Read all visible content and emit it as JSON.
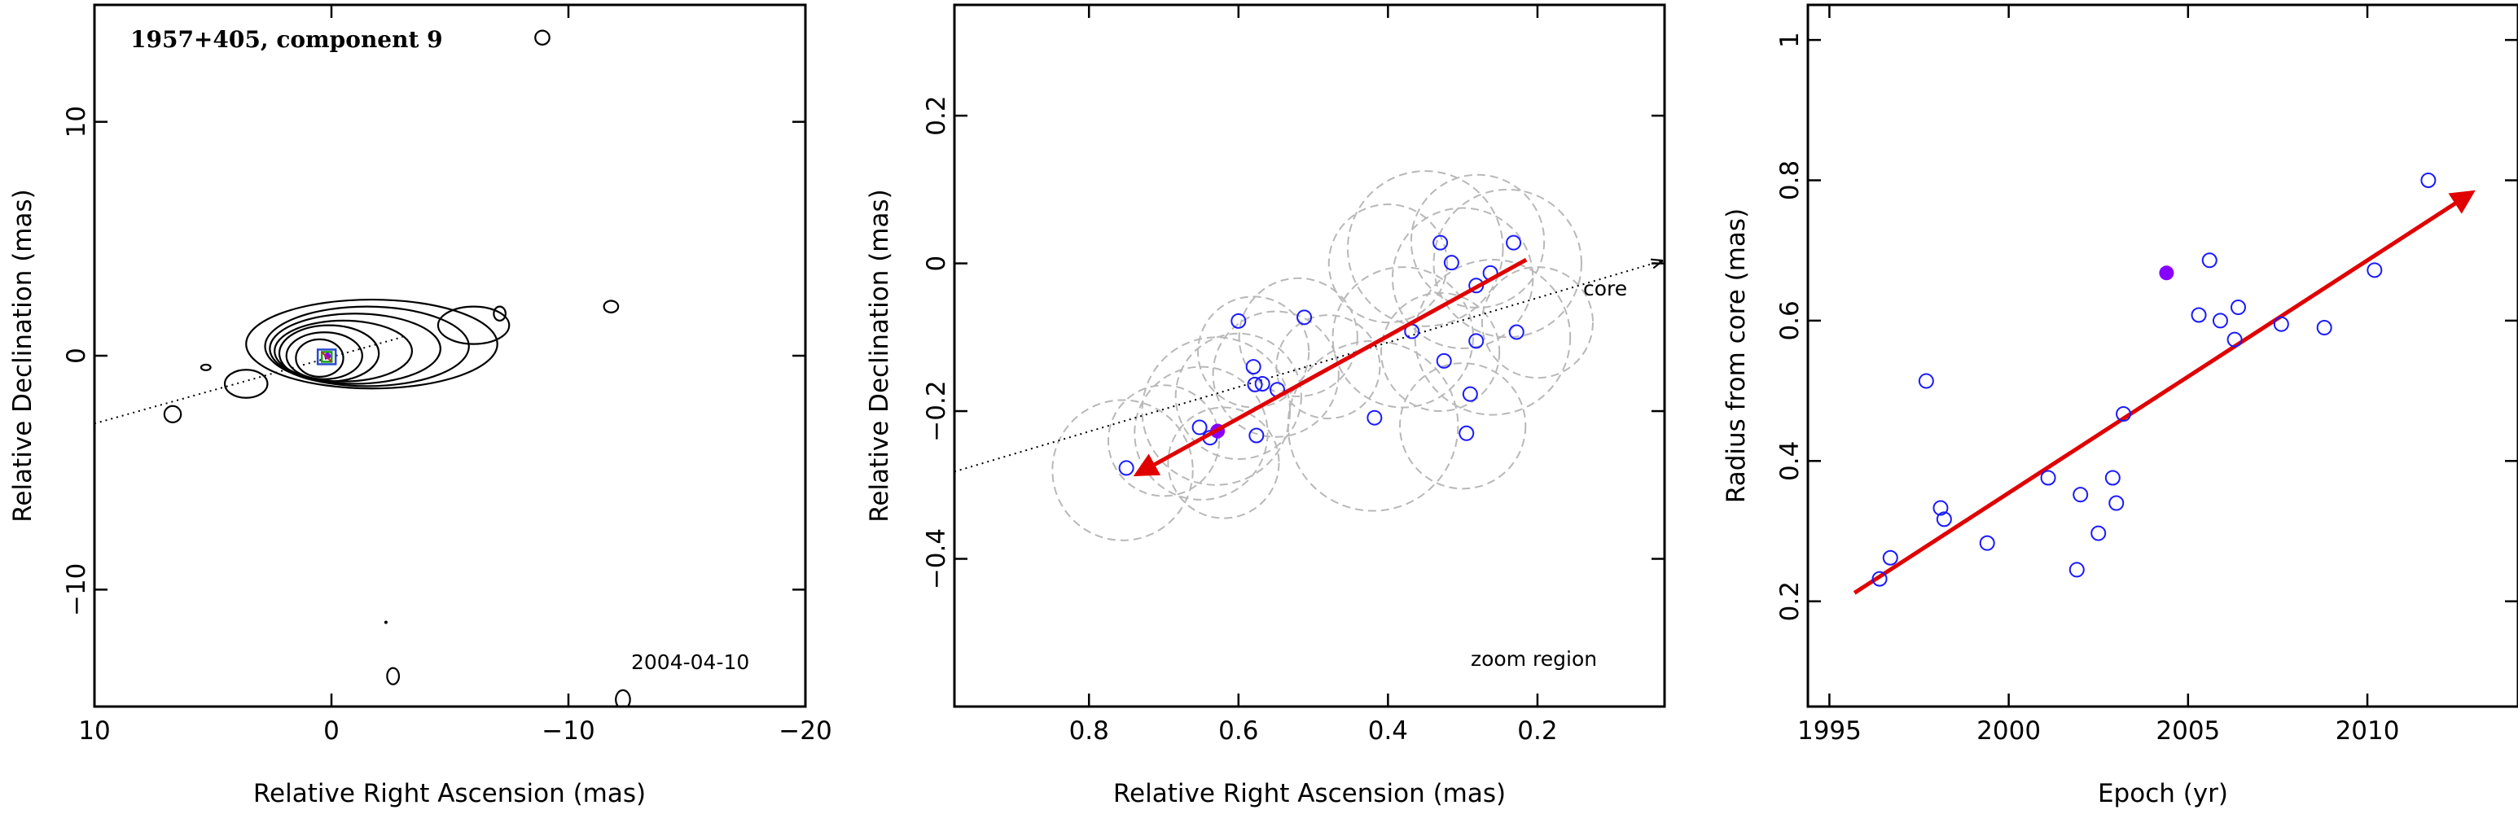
{
  "colors": {
    "model_circle": "#1a1aff",
    "highlight": "#8800ff",
    "arrow": "#e00000",
    "fov_circle": "#b8b8b8"
  },
  "chart_data": [
    {
      "type": "contour",
      "annotation_title": "1957+405, component 9",
      "annotation_epoch": "2004-04-10",
      "xlabel": "Relative Right Ascension (mas)",
      "ylabel": "Relative Declination (mas)",
      "xlim": [
        10,
        -20
      ],
      "ylim": [
        -15,
        15
      ],
      "xticks": [
        10,
        0,
        -10,
        -20
      ],
      "xtick_labels": [
        "10",
        "0",
        "−10",
        "−20"
      ],
      "yticks": [
        -10,
        0,
        10
      ],
      "ytick_labels": [
        "−10",
        "0",
        "10"
      ],
      "dotted_direction": {
        "from": [
          10,
          -2.9
        ],
        "to": [
          -3,
          0.8
        ]
      },
      "contours": [
        {
          "cx": 0.5,
          "cy": -0.1,
          "rx": 1.0,
          "ry": 0.8
        },
        {
          "cx": 0.3,
          "cy": 0.0,
          "rx": 1.6,
          "ry": 1.0
        },
        {
          "cx": 0.1,
          "cy": 0.1,
          "rx": 2.1,
          "ry": 1.2
        },
        {
          "cx": -0.5,
          "cy": 0.2,
          "rx": 2.9,
          "ry": 1.3
        },
        {
          "cx": -1.0,
          "cy": 0.3,
          "rx": 3.6,
          "ry": 1.5
        },
        {
          "cx": -1.5,
          "cy": 0.4,
          "rx": 4.3,
          "ry": 1.7
        },
        {
          "cx": -1.7,
          "cy": 0.5,
          "rx": 5.3,
          "ry": 1.9
        }
      ],
      "isolated_contours": [
        {
          "cx": 3.6,
          "cy": -1.2,
          "rx": 0.9,
          "ry": 0.6
        },
        {
          "cx": -6.0,
          "cy": 1.3,
          "rx": 1.5,
          "ry": 0.8
        },
        {
          "cx": 6.7,
          "cy": -2.5,
          "rx": 0.35,
          "ry": 0.35
        },
        {
          "cx": 5.3,
          "cy": -0.5,
          "rx": 0.2,
          "ry": 0.12
        },
        {
          "cx": -7.1,
          "cy": 1.8,
          "rx": 0.25,
          "ry": 0.3
        },
        {
          "cx": -8.9,
          "cy": 13.6,
          "rx": 0.3,
          "ry": 0.3
        },
        {
          "cx": -11.8,
          "cy": 2.1,
          "rx": 0.3,
          "ry": 0.25
        },
        {
          "cx": -2.6,
          "cy": -13.7,
          "rx": 0.25,
          "ry": 0.35
        },
        {
          "cx": -12.3,
          "cy": -14.7,
          "rx": 0.3,
          "ry": 0.4
        }
      ],
      "speck": [
        -2.3,
        -11.4
      ]
    },
    {
      "type": "scatter",
      "annotation_core": "core",
      "annotation_region": "zoom region",
      "xlabel": "Relative Right Ascension (mas)",
      "ylabel": "Relative Declination (mas)",
      "xlim": [
        0.98,
        0.03
      ],
      "ylim": [
        -0.6,
        0.35
      ],
      "xticks": [
        0.8,
        0.6,
        0.4,
        0.2
      ],
      "xtick_labels": [
        "0.8",
        "0.6",
        "0.4",
        "0.2"
      ],
      "yticks": [
        -0.4,
        -0.2,
        0,
        0.2
      ],
      "ytick_labels": [
        "−0.4",
        "−0.2",
        "0",
        "0.2"
      ],
      "points": [
        [
          0.75,
          -0.277
        ],
        [
          0.652,
          -0.222
        ],
        [
          0.638,
          -0.236
        ],
        [
          0.576,
          -0.233
        ],
        [
          0.58,
          -0.14
        ],
        [
          0.578,
          -0.164
        ],
        [
          0.568,
          -0.163
        ],
        [
          0.548,
          -0.171
        ],
        [
          0.6,
          -0.078
        ],
        [
          0.512,
          -0.073
        ],
        [
          0.418,
          -0.209
        ],
        [
          0.368,
          -0.092
        ],
        [
          0.33,
          0.028
        ],
        [
          0.315,
          0.001
        ],
        [
          0.325,
          -0.132
        ],
        [
          0.295,
          -0.23
        ],
        [
          0.29,
          -0.177
        ],
        [
          0.282,
          -0.105
        ],
        [
          0.282,
          -0.03
        ],
        [
          0.263,
          -0.013
        ],
        [
          0.232,
          0.028
        ],
        [
          0.228,
          -0.093
        ]
      ],
      "highlight_point": [
        0.628,
        -0.227
      ],
      "fov_circles": [
        [
          0.755,
          -0.28,
          0.095
        ],
        [
          0.7,
          -0.24,
          0.075
        ],
        [
          0.65,
          -0.23,
          0.09
        ],
        [
          0.63,
          -0.2,
          0.1
        ],
        [
          0.6,
          -0.18,
          0.085
        ],
        [
          0.58,
          -0.12,
          0.075
        ],
        [
          0.55,
          -0.15,
          0.085
        ],
        [
          0.52,
          -0.1,
          0.08
        ],
        [
          0.48,
          -0.14,
          0.07
        ],
        [
          0.62,
          -0.27,
          0.075
        ],
        [
          0.42,
          -0.22,
          0.115
        ],
        [
          0.38,
          -0.1,
          0.095
        ],
        [
          0.35,
          0.02,
          0.105
        ],
        [
          0.3,
          -0.02,
          0.095
        ],
        [
          0.28,
          0.03,
          0.09
        ],
        [
          0.26,
          -0.1,
          0.105
        ],
        [
          0.24,
          0.0,
          0.1
        ],
        [
          0.3,
          -0.22,
          0.085
        ],
        [
          0.33,
          -0.12,
          0.08
        ],
        [
          0.2,
          -0.08,
          0.075
        ],
        [
          0.4,
          0.0,
          0.08
        ]
      ],
      "direction_line": {
        "from": [
          0.98,
          -0.282
        ],
        "to": [
          0.035,
          0.003
        ]
      },
      "arrow": {
        "from": [
          0.215,
          0.005
        ],
        "to": [
          0.735,
          -0.285
        ]
      }
    },
    {
      "type": "scatter",
      "xlabel": "Epoch (yr)",
      "ylabel": "Radius from core (mas)",
      "xlim": [
        1994.4,
        2014.2
      ],
      "ylim": [
        0.05,
        1.05
      ],
      "xticks": [
        1995,
        2000,
        2005,
        2010
      ],
      "xtick_labels": [
        "1995",
        "2000",
        "2005",
        "2010"
      ],
      "yticks": [
        0.2,
        0.4,
        0.6,
        0.8,
        1
      ],
      "ytick_labels": [
        "0.2",
        "0.4",
        "0.6",
        "0.8",
        "1"
      ],
      "points": [
        [
          1996.4,
          0.232
        ],
        [
          1996.7,
          0.262
        ],
        [
          1997.7,
          0.514
        ],
        [
          1998.1,
          0.333
        ],
        [
          1998.2,
          0.317
        ],
        [
          1999.4,
          0.283
        ],
        [
          2001.1,
          0.376
        ],
        [
          2001.9,
          0.245
        ],
        [
          2002.0,
          0.352
        ],
        [
          2002.5,
          0.297
        ],
        [
          2002.9,
          0.376
        ],
        [
          2003.0,
          0.34
        ],
        [
          2003.2,
          0.467
        ],
        [
          2005.3,
          0.608
        ],
        [
          2005.6,
          0.686
        ],
        [
          2005.9,
          0.6
        ],
        [
          2006.3,
          0.573
        ],
        [
          2006.4,
          0.619
        ],
        [
          2007.6,
          0.595
        ],
        [
          2008.8,
          0.59
        ],
        [
          2010.2,
          0.672
        ],
        [
          2011.7,
          0.8
        ]
      ],
      "highlight_point": [
        2004.4,
        0.668
      ],
      "arrow": {
        "from": [
          1995.7,
          0.212
        ],
        "to": [
          2012.9,
          0.782
        ]
      }
    }
  ]
}
